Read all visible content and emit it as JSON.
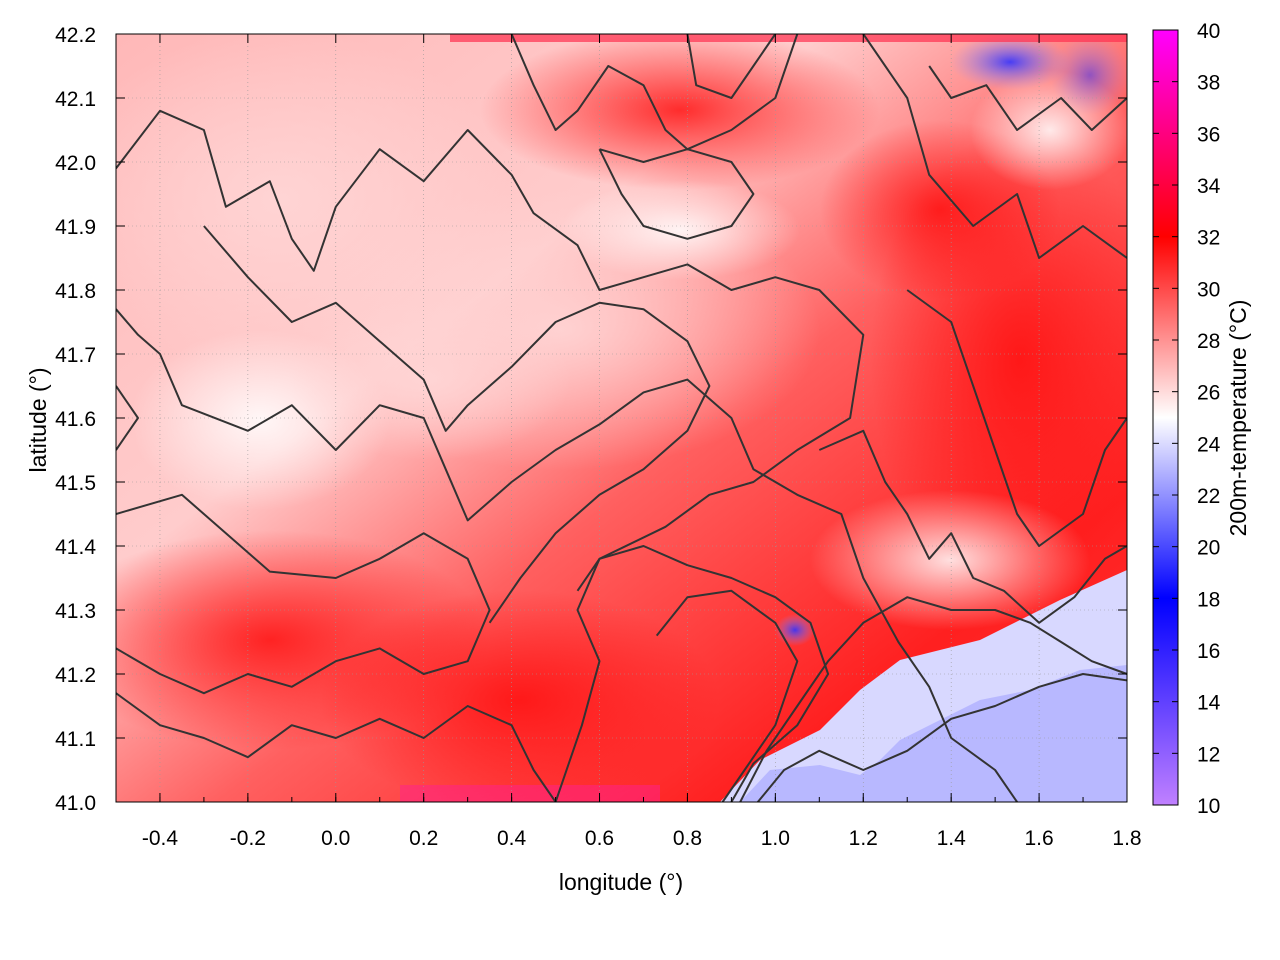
{
  "chart_data": {
    "type": "heatmap",
    "title": "",
    "xlabel": "longitude (°)",
    "ylabel": "latitude (°)",
    "colorbar_label": "200m-temperature (°C)",
    "xlim": [
      -0.5,
      1.8
    ],
    "ylim": [
      41.0,
      42.2
    ],
    "x_ticks": [
      "-0.4",
      "-0.2",
      "0.0",
      "0.2",
      "0.4",
      "0.6",
      "0.8",
      "1.0",
      "1.2",
      "1.4",
      "1.6",
      "1.8"
    ],
    "x_tick_values": [
      -0.4,
      -0.2,
      0.0,
      0.2,
      0.4,
      0.6,
      0.8,
      1.0,
      1.2,
      1.4,
      1.6,
      1.8
    ],
    "y_ticks": [
      "41.0",
      "41.1",
      "41.2",
      "41.3",
      "41.4",
      "41.5",
      "41.6",
      "41.7",
      "41.8",
      "41.9",
      "42.0",
      "42.1",
      "42.2"
    ],
    "y_tick_values": [
      41.0,
      41.1,
      41.2,
      41.3,
      41.4,
      41.5,
      41.6,
      41.7,
      41.8,
      41.9,
      42.0,
      42.1,
      42.2
    ],
    "colorbar_range": [
      10,
      40
    ],
    "colorbar_ticks": [
      "10",
      "12",
      "14",
      "16",
      "18",
      "20",
      "22",
      "24",
      "26",
      "28",
      "30",
      "32",
      "34",
      "36",
      "38",
      "40"
    ],
    "colorbar_tick_values": [
      10,
      12,
      14,
      16,
      18,
      20,
      22,
      24,
      26,
      28,
      30,
      32,
      34,
      36,
      38,
      40
    ],
    "colorbar_stops": [
      {
        "value": 10,
        "color": "#c080ff"
      },
      {
        "value": 18,
        "color": "#0000ff"
      },
      {
        "value": 25,
        "color": "#ffffff"
      },
      {
        "value": 32,
        "color": "#ff0000"
      },
      {
        "value": 40,
        "color": "#ff00ff"
      }
    ],
    "grid": true,
    "contours": [
      [
        [
          -0.5,
          41.99
        ],
        [
          -0.4,
          42.08
        ],
        [
          -0.3,
          42.05
        ],
        [
          -0.25,
          41.93
        ],
        [
          -0.15,
          41.97
        ],
        [
          -0.1,
          41.88
        ],
        [
          -0.05,
          41.83
        ],
        [
          0.0,
          41.93
        ],
        [
          0.1,
          42.02
        ],
        [
          0.2,
          41.97
        ],
        [
          0.3,
          42.05
        ],
        [
          0.4,
          41.98
        ],
        [
          0.45,
          41.92
        ],
        [
          0.55,
          41.87
        ],
        [
          0.6,
          41.8
        ],
        [
          0.7,
          41.82
        ],
        [
          0.8,
          41.84
        ],
        [
          0.9,
          41.8
        ],
        [
          1.0,
          41.82
        ],
        [
          1.1,
          41.8
        ],
        [
          1.2,
          41.73
        ],
        [
          1.17,
          41.6
        ],
        [
          1.05,
          41.55
        ],
        [
          0.95,
          41.5
        ],
        [
          0.85,
          41.48
        ],
        [
          0.75,
          41.43
        ],
        [
          0.6,
          41.38
        ],
        [
          0.55,
          41.3
        ],
        [
          0.6,
          41.22
        ],
        [
          0.56,
          41.12
        ],
        [
          0.5,
          41.0
        ]
      ],
      [
        [
          -0.5,
          41.77
        ],
        [
          -0.45,
          41.73
        ],
        [
          -0.4,
          41.7
        ],
        [
          -0.35,
          41.62
        ],
        [
          -0.2,
          41.58
        ],
        [
          -0.1,
          41.62
        ],
        [
          0.0,
          41.55
        ],
        [
          0.1,
          41.62
        ],
        [
          0.2,
          41.6
        ],
        [
          0.25,
          41.52
        ],
        [
          0.3,
          41.44
        ],
        [
          0.4,
          41.5
        ],
        [
          0.5,
          41.55
        ],
        [
          0.6,
          41.59
        ],
        [
          0.7,
          41.64
        ],
        [
          0.8,
          41.66
        ],
        [
          0.9,
          41.6
        ],
        [
          0.95,
          41.52
        ],
        [
          1.05,
          41.48
        ],
        [
          1.15,
          41.45
        ],
        [
          1.2,
          41.35
        ],
        [
          1.28,
          41.25
        ],
        [
          1.35,
          41.18
        ],
        [
          1.4,
          41.1
        ],
        [
          1.5,
          41.05
        ],
        [
          1.55,
          41.0
        ]
      ],
      [
        [
          -0.3,
          41.9
        ],
        [
          -0.2,
          41.82
        ],
        [
          -0.1,
          41.75
        ],
        [
          0.0,
          41.78
        ],
        [
          0.1,
          41.72
        ],
        [
          0.2,
          41.66
        ],
        [
          0.25,
          41.58
        ],
        [
          0.3,
          41.62
        ],
        [
          0.4,
          41.68
        ],
        [
          0.5,
          41.75
        ],
        [
          0.6,
          41.78
        ],
        [
          0.7,
          41.77
        ],
        [
          0.8,
          41.72
        ],
        [
          0.85,
          41.65
        ],
        [
          0.8,
          41.58
        ],
        [
          0.7,
          41.52
        ],
        [
          0.6,
          41.48
        ],
        [
          0.5,
          41.42
        ],
        [
          0.42,
          41.35
        ],
        [
          0.35,
          41.28
        ]
      ],
      [
        [
          -0.5,
          41.45
        ],
        [
          -0.35,
          41.48
        ],
        [
          -0.25,
          41.42
        ],
        [
          -0.15,
          41.36
        ],
        [
          0.0,
          41.35
        ],
        [
          0.1,
          41.38
        ],
        [
          0.2,
          41.42
        ],
        [
          0.3,
          41.38
        ],
        [
          0.35,
          41.3
        ],
        [
          0.3,
          41.22
        ],
        [
          0.2,
          41.2
        ],
        [
          0.1,
          41.24
        ],
        [
          0.0,
          41.22
        ],
        [
          -0.1,
          41.18
        ],
        [
          -0.2,
          41.2
        ],
        [
          -0.3,
          41.17
        ],
        [
          -0.4,
          41.2
        ],
        [
          -0.5,
          41.24
        ]
      ],
      [
        [
          -0.5,
          41.17
        ],
        [
          -0.4,
          41.12
        ],
        [
          -0.3,
          41.1
        ],
        [
          -0.2,
          41.07
        ],
        [
          -0.1,
          41.12
        ],
        [
          0.0,
          41.1
        ],
        [
          0.1,
          41.13
        ],
        [
          0.2,
          41.1
        ],
        [
          0.3,
          41.15
        ],
        [
          0.4,
          41.12
        ],
        [
          0.45,
          41.05
        ],
        [
          0.5,
          41.0
        ]
      ],
      [
        [
          0.55,
          41.33
        ],
        [
          0.6,
          41.38
        ],
        [
          0.7,
          41.4
        ],
        [
          0.8,
          41.37
        ],
        [
          0.9,
          41.35
        ],
        [
          1.0,
          41.32
        ],
        [
          1.08,
          41.28
        ],
        [
          1.12,
          41.2
        ],
        [
          1.05,
          41.12
        ],
        [
          0.95,
          41.06
        ],
        [
          0.9,
          41.0
        ]
      ],
      [
        [
          0.73,
          41.26
        ],
        [
          0.8,
          41.32
        ],
        [
          0.9,
          41.33
        ],
        [
          1.0,
          41.28
        ],
        [
          1.05,
          41.22
        ],
        [
          1.0,
          41.12
        ],
        [
          0.93,
          41.05
        ],
        [
          0.88,
          41.0
        ]
      ],
      [
        [
          0.92,
          41.0
        ],
        [
          0.98,
          41.08
        ],
        [
          1.05,
          41.15
        ],
        [
          1.12,
          41.22
        ],
        [
          1.2,
          41.28
        ],
        [
          1.3,
          41.32
        ],
        [
          1.4,
          41.3
        ],
        [
          1.5,
          41.3
        ],
        [
          1.58,
          41.28
        ],
        [
          1.65,
          41.25
        ],
        [
          1.72,
          41.22
        ],
        [
          1.8,
          41.2
        ]
      ],
      [
        [
          0.96,
          41.0
        ],
        [
          1.02,
          41.05
        ],
        [
          1.1,
          41.08
        ],
        [
          1.2,
          41.05
        ],
        [
          1.3,
          41.08
        ],
        [
          1.4,
          41.13
        ],
        [
          1.5,
          41.15
        ],
        [
          1.6,
          41.18
        ],
        [
          1.7,
          41.2
        ],
        [
          1.8,
          41.19
        ]
      ],
      [
        [
          0.4,
          42.2
        ],
        [
          0.45,
          42.12
        ],
        [
          0.5,
          42.05
        ],
        [
          0.55,
          42.08
        ],
        [
          0.62,
          42.15
        ],
        [
          0.7,
          42.12
        ],
        [
          0.75,
          42.05
        ],
        [
          0.8,
          42.02
        ],
        [
          0.9,
          42.05
        ],
        [
          1.0,
          42.1
        ],
        [
          1.05,
          42.2
        ]
      ],
      [
        [
          0.6,
          42.02
        ],
        [
          0.65,
          41.95
        ],
        [
          0.7,
          41.9
        ],
        [
          0.8,
          41.88
        ],
        [
          0.9,
          41.9
        ],
        [
          0.95,
          41.95
        ],
        [
          0.9,
          42.0
        ],
        [
          0.8,
          42.02
        ],
        [
          0.7,
          42.0
        ],
        [
          0.6,
          42.02
        ]
      ],
      [
        [
          1.2,
          42.2
        ],
        [
          1.3,
          42.1
        ],
        [
          1.35,
          41.98
        ],
        [
          1.45,
          41.9
        ],
        [
          1.55,
          41.95
        ],
        [
          1.6,
          41.85
        ],
        [
          1.7,
          41.9
        ],
        [
          1.8,
          41.85
        ]
      ],
      [
        [
          1.35,
          42.15
        ],
        [
          1.4,
          42.1
        ],
        [
          1.48,
          42.12
        ],
        [
          1.55,
          42.05
        ],
        [
          1.65,
          42.1
        ],
        [
          1.72,
          42.05
        ],
        [
          1.8,
          42.1
        ]
      ],
      [
        [
          1.3,
          41.8
        ],
        [
          1.4,
          41.75
        ],
        [
          1.45,
          41.65
        ],
        [
          1.5,
          41.55
        ],
        [
          1.55,
          41.45
        ],
        [
          1.6,
          41.4
        ],
        [
          1.7,
          41.45
        ],
        [
          1.75,
          41.55
        ],
        [
          1.8,
          41.6
        ]
      ],
      [
        [
          0.8,
          42.2
        ],
        [
          0.82,
          42.12
        ],
        [
          0.9,
          42.1
        ],
        [
          0.95,
          42.15
        ],
        [
          1.0,
          42.2
        ]
      ],
      [
        [
          -0.5,
          41.55
        ],
        [
          -0.45,
          41.6
        ],
        [
          -0.5,
          41.65
        ]
      ],
      [
        [
          1.1,
          41.55
        ],
        [
          1.2,
          41.58
        ],
        [
          1.25,
          41.5
        ],
        [
          1.3,
          41.45
        ],
        [
          1.35,
          41.38
        ],
        [
          1.4,
          41.42
        ],
        [
          1.45,
          41.35
        ],
        [
          1.52,
          41.33
        ],
        [
          1.6,
          41.28
        ],
        [
          1.68,
          41.32
        ],
        [
          1.75,
          41.38
        ],
        [
          1.8,
          41.4
        ]
      ]
    ]
  }
}
